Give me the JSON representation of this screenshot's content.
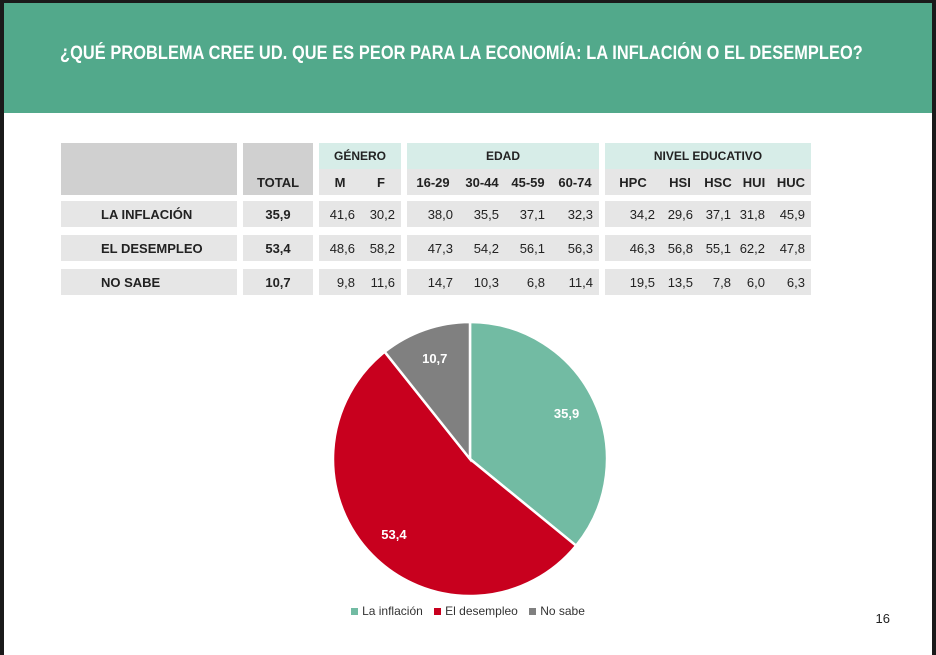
{
  "header": {
    "title": "¿QUÉ PROBLEMA CREE UD. QUE ES PEOR PARA LA ECONOMÍA: LA INFLACIÓN O EL DESEMPLEO?"
  },
  "table": {
    "groups": {
      "genero": "GÉNERO",
      "edad": "EDAD",
      "nivel": "NIVEL EDUCATIVO"
    },
    "columns": [
      "TOTAL",
      "M",
      "F",
      "16-29",
      "30-44",
      "45-59",
      "60-74",
      "HPC",
      "HSI",
      "HSC",
      "HUI",
      "HUC"
    ],
    "rows": [
      {
        "label": "LA INFLACIÓN",
        "values": [
          "35,9",
          "41,6",
          "30,2",
          "38,0",
          "35,5",
          "37,1",
          "32,3",
          "34,2",
          "29,6",
          "37,1",
          "31,8",
          "45,9"
        ]
      },
      {
        "label": "EL DESEMPLEO",
        "values": [
          "53,4",
          "48,6",
          "58,2",
          "47,3",
          "54,2",
          "56,1",
          "56,3",
          "46,3",
          "56,8",
          "55,1",
          "62,2",
          "47,8"
        ]
      },
      {
        "label": "NO SABE",
        "values": [
          "10,7",
          "9,8",
          "11,6",
          "14,7",
          "10,3",
          "6,8",
          "11,4",
          "19,5",
          "13,5",
          "7,8",
          "6,0",
          "6,3"
        ]
      }
    ]
  },
  "chart_data": {
    "type": "pie",
    "categories": [
      "La inflación",
      "El desempleo",
      "No sabe"
    ],
    "values": [
      35.9,
      53.4,
      10.7
    ],
    "data_labels": [
      "35,9",
      "53,4",
      "10,7"
    ],
    "colors": [
      "#72bba3",
      "#c8001e",
      "#808080"
    ],
    "legend_position": "bottom"
  },
  "page": {
    "number": "16"
  }
}
